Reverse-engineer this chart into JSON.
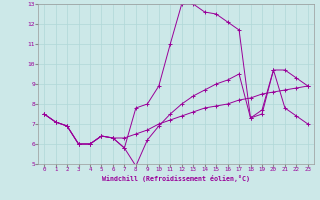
{
  "xlabel": "Windchill (Refroidissement éolien,°C)",
  "bg_color": "#cce8e8",
  "line_color": "#990099",
  "xmin": -0.5,
  "xmax": 23.5,
  "ymin": 5,
  "ymax": 13,
  "x_ticks": [
    0,
    1,
    2,
    3,
    4,
    5,
    6,
    7,
    8,
    9,
    10,
    11,
    12,
    13,
    14,
    15,
    16,
    17,
    18,
    19,
    20,
    21,
    22,
    23
  ],
  "y_ticks": [
    5,
    6,
    7,
    8,
    9,
    10,
    11,
    12,
    13
  ],
  "line1_x": [
    0,
    1,
    2,
    3,
    4,
    5,
    6,
    7,
    8,
    9,
    10,
    11,
    12,
    13,
    14,
    15,
    16,
    17,
    18,
    19,
    20,
    21,
    22,
    23
  ],
  "line1_y": [
    7.5,
    7.1,
    6.9,
    6.0,
    6.0,
    6.4,
    6.3,
    6.3,
    6.5,
    6.7,
    7.0,
    7.2,
    7.4,
    7.6,
    7.8,
    7.9,
    8.0,
    8.2,
    8.3,
    8.5,
    8.6,
    8.7,
    8.8,
    8.9
  ],
  "line2_x": [
    0,
    1,
    2,
    3,
    4,
    5,
    6,
    7,
    8,
    9,
    10,
    11,
    12,
    13,
    14,
    15,
    16,
    17,
    18,
    19,
    20,
    21,
    22,
    23
  ],
  "line2_y": [
    7.5,
    7.1,
    6.9,
    6.0,
    6.0,
    6.4,
    6.3,
    5.8,
    7.8,
    8.0,
    8.9,
    11.0,
    13.0,
    13.0,
    12.6,
    12.5,
    12.1,
    11.7,
    7.3,
    7.5,
    9.7,
    7.8,
    7.4,
    7.0
  ],
  "line3_x": [
    0,
    1,
    2,
    3,
    4,
    5,
    6,
    7,
    8,
    9,
    10,
    11,
    12,
    13,
    14,
    15,
    16,
    17,
    18,
    19,
    20,
    21,
    22,
    23
  ],
  "line3_y": [
    7.5,
    7.1,
    6.9,
    6.0,
    6.0,
    6.4,
    6.3,
    5.8,
    4.9,
    6.2,
    6.9,
    7.5,
    8.0,
    8.4,
    8.7,
    9.0,
    9.2,
    9.5,
    7.3,
    7.7,
    9.7,
    9.7,
    9.3,
    8.9
  ]
}
